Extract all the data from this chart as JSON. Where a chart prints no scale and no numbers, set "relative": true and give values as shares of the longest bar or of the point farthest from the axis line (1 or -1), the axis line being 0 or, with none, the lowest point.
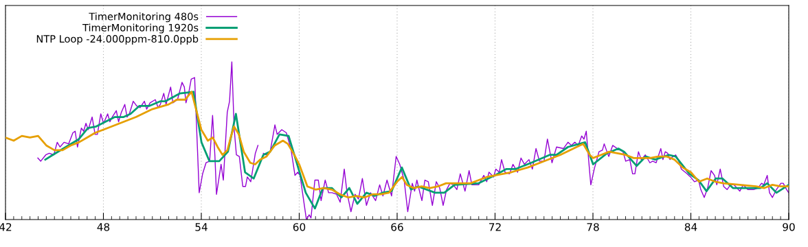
{
  "chart_data": {
    "type": "line",
    "relative": true,
    "xlim": [
      42,
      90
    ],
    "xticks": [
      42,
      48,
      54,
      60,
      66,
      72,
      78,
      84,
      90
    ],
    "tick_labels": "x",
    "grid": "x",
    "legend": "top left",
    "marker": "none",
    "line_style": "solid",
    "series": [
      {
        "name": "TimerMonitoring 480s",
        "color": "#9400d3",
        "x": [
          43.98,
          44.16,
          44.47,
          44.68,
          44.96,
          45.17,
          45.34,
          45.59,
          45.87,
          46.13,
          46.27,
          46.41,
          46.65,
          46.79,
          46.93,
          47.07,
          47.31,
          47.49,
          47.63,
          47.84,
          48.01,
          48.26,
          48.4,
          48.54,
          48.79,
          48.93,
          49.1,
          49.31,
          49.45,
          49.59,
          49.83,
          50.04,
          50.25,
          50.51,
          50.65,
          50.86,
          51.18,
          51.35,
          51.49,
          51.7,
          51.84,
          52.12,
          52.26,
          52.54,
          52.82,
          52.96,
          53.06,
          53.24,
          53.38,
          53.59,
          53.87,
          54.08,
          54.29,
          54.51,
          54.69,
          54.83,
          54.93,
          55.21,
          55.35,
          55.59,
          55.73,
          55.87,
          56.01,
          56.15,
          56.33,
          56.54,
          56.71,
          56.82,
          57.03,
          57.31,
          57.47,
          57.64,
          57.8,
          57.97,
          58.22,
          58.51,
          58.65,
          58.93,
          59.21,
          59.49,
          59.74,
          59.91,
          60.05,
          60.44,
          60.61,
          60.72,
          60.96,
          61.17,
          61.34,
          61.59,
          61.8,
          62.01,
          62.29,
          62.51,
          62.76,
          62.93,
          63.17,
          63.42,
          63.63,
          63.87,
          64.12,
          64.37,
          64.68,
          64.93,
          65.13,
          65.38,
          65.66,
          65.94,
          66.16,
          66.43,
          66.65,
          66.93,
          67.07,
          67.21,
          67.42,
          67.52,
          67.7,
          67.91,
          68.16,
          68.4,
          68.61,
          68.82,
          69.03,
          69.24,
          69.45,
          69.66,
          69.87,
          70.16,
          70.41,
          70.58,
          71.0,
          71.31,
          71.49,
          71.63,
          71.91,
          72.05,
          72.26,
          72.4,
          72.61,
          72.89,
          73.1,
          73.38,
          73.59,
          73.8,
          74.08,
          74.29,
          74.51,
          74.72,
          75.0,
          75.21,
          75.49,
          75.77,
          76.19,
          76.47,
          76.68,
          76.89,
          77.1,
          77.31,
          77.45,
          77.59,
          77.8,
          77.87,
          78.08,
          78.37,
          78.58,
          78.69,
          78.86,
          78.97,
          79.21,
          79.49,
          79.84,
          80.01,
          80.26,
          80.43,
          80.57,
          80.79,
          80.96,
          81.21,
          81.49,
          81.66,
          81.87,
          82.16,
          82.29,
          82.43,
          82.58,
          82.72,
          82.9,
          83.07,
          83.23,
          83.42,
          83.77,
          83.98,
          84.22,
          84.47,
          84.61,
          84.82,
          85.03,
          85.24,
          85.45,
          85.59,
          85.8,
          86.01,
          86.22,
          86.43,
          86.65,
          87.0,
          87.21,
          87.49,
          87.84,
          88.12,
          88.33,
          88.47,
          88.68,
          88.82,
          89.0,
          89.24,
          89.52,
          89.66,
          89.87,
          90.0
        ],
        "values": [
          0.39,
          0.37,
          0.41,
          0.42,
          0.41,
          0.49,
          0.46,
          0.49,
          0.48,
          0.55,
          0.56,
          0.46,
          0.58,
          0.56,
          0.61,
          0.57,
          0.65,
          0.54,
          0.54,
          0.67,
          0.61,
          0.67,
          0.62,
          0.65,
          0.69,
          0.62,
          0.68,
          0.73,
          0.65,
          0.67,
          0.75,
          0.72,
          0.71,
          0.75,
          0.7,
          0.74,
          0.76,
          0.71,
          0.73,
          0.8,
          0.73,
          0.84,
          0.74,
          0.76,
          0.87,
          0.84,
          0.74,
          0.81,
          0.89,
          0.9,
          0.17,
          0.29,
          0.36,
          0.37,
          0.66,
          0.41,
          0.16,
          0.35,
          0.25,
          0.68,
          0.75,
          1.0,
          0.58,
          0.41,
          0.4,
          0.21,
          0.21,
          0.27,
          0.24,
          0.42,
          0.47,
          null,
          0.42,
          0.41,
          0.43,
          0.6,
          0.54,
          0.57,
          0.55,
          0.45,
          0.28,
          0.3,
          0.28,
          0.0,
          0.03,
          0.01,
          0.25,
          0.25,
          0.12,
          0.25,
          0.17,
          0.17,
          0.16,
          0.11,
          0.32,
          0.17,
          0.05,
          0.16,
          0.13,
          0.26,
          0.09,
          0.17,
          0.12,
          0.22,
          0.15,
          0.25,
          0.15,
          0.4,
          0.35,
          0.25,
          0.05,
          0.23,
          0.18,
          0.25,
          0.16,
          0.12,
          0.25,
          0.24,
          0.09,
          0.24,
          0.2,
          0.09,
          0.19,
          0.23,
          0.22,
          0.19,
          0.29,
          0.18,
          0.31,
          0.22,
          0.22,
          0.28,
          0.24,
          0.3,
          0.27,
          0.32,
          0.3,
          0.38,
          0.3,
          0.29,
          0.35,
          0.3,
          0.39,
          0.35,
          0.38,
          0.32,
          0.45,
          0.37,
          0.37,
          0.51,
          0.36,
          0.46,
          0.45,
          0.49,
          0.47,
          0.49,
          0.47,
          0.53,
          0.51,
          0.56,
          0.3,
          0.22,
          0.32,
          0.43,
          0.44,
          0.48,
          0.43,
          0.4,
          0.47,
          0.45,
          0.43,
          0.37,
          0.38,
          0.29,
          0.29,
          0.43,
          0.38,
          0.41,
          0.36,
          0.37,
          0.36,
          0.45,
          0.38,
          0.43,
          0.42,
          0.38,
          0.4,
          0.41,
          0.38,
          0.32,
          0.29,
          0.27,
          0.24,
          0.25,
          0.19,
          0.14,
          0.2,
          0.31,
          0.28,
          0.22,
          0.32,
          0.21,
          0.19,
          0.22,
          0.22,
          0.18,
          0.22,
          0.19,
          0.19,
          0.2,
          0.23,
          0.22,
          0.28,
          0.17,
          0.14,
          0.19,
          0.23,
          0.23,
          0.19,
          0.17
        ]
      },
      {
        "name": "TimerMonitoring 1920s",
        "color": "#009e73",
        "x": [
          44.44,
          44.9,
          46.5,
          47.05,
          47.56,
          48.7,
          49.24,
          49.66,
          50.2,
          50.8,
          51.5,
          51.8,
          52.7,
          53.52,
          54.01,
          54.5,
          55.1,
          55.63,
          56.12,
          56.68,
          57.21,
          57.8,
          58.22,
          58.79,
          59.35,
          60.4,
          60.96,
          61.45,
          62.0,
          62.58,
          63.07,
          63.56,
          64.12,
          64.62,
          65.1,
          65.66,
          66.29,
          66.85,
          67.28,
          68.33,
          68.89,
          69.52,
          71.0,
          71.98,
          72.68,
          73.24,
          74.22,
          75.35,
          75.77,
          76.47,
          77.52,
          78.01,
          78.86,
          79.56,
          79.91,
          80.68,
          81.24,
          81.81,
          82.65,
          83.07,
          83.91,
          84.47,
          84.96,
          85.52,
          85.94,
          86.58,
          88.26,
          88.68,
          89.25,
          90.0
        ],
        "values": [
          0.38,
          0.41,
          0.51,
          0.58,
          0.59,
          0.65,
          0.65,
          0.67,
          0.72,
          0.72,
          0.75,
          0.75,
          0.8,
          0.81,
          0.49,
          0.37,
          0.37,
          0.43,
          0.67,
          0.3,
          0.26,
          0.41,
          0.43,
          0.54,
          0.53,
          0.17,
          0.07,
          0.2,
          0.2,
          0.14,
          0.2,
          0.1,
          0.17,
          0.15,
          0.17,
          0.18,
          0.33,
          0.19,
          0.21,
          0.17,
          0.17,
          0.22,
          0.23,
          0.28,
          0.32,
          0.32,
          0.36,
          0.41,
          0.41,
          0.46,
          0.49,
          0.35,
          0.42,
          0.45,
          0.43,
          0.34,
          0.4,
          0.38,
          0.41,
          0.4,
          0.29,
          0.25,
          0.18,
          0.26,
          0.26,
          0.2,
          0.2,
          0.23,
          0.17,
          0.22
        ]
      },
      {
        "name": "NTP Loop -24.000ppm-810.0ppb",
        "color": "#e69f00",
        "x": [
          42,
          42.5,
          43,
          43.5,
          44,
          44.5,
          45,
          45.5,
          46,
          46.5,
          47,
          47.5,
          48,
          49,
          50,
          51,
          52,
          52.5,
          53,
          53.4,
          53.8,
          54,
          54.4,
          54.7,
          55,
          55.3,
          55.6,
          55.8,
          56,
          56.3,
          56.6,
          57,
          57.3,
          57.6,
          58,
          58.5,
          59,
          59.3,
          59.7,
          60,
          60.5,
          61,
          61.5,
          62,
          62.5,
          63,
          63.5,
          64,
          64.5,
          65,
          65.5,
          66,
          66.3,
          66.6,
          67,
          67.5,
          68,
          68.5,
          69,
          69.5,
          70,
          70.5,
          71,
          71.5,
          72,
          73,
          74,
          75,
          76,
          77,
          77.4,
          77.8,
          78,
          78.5,
          79,
          79.5,
          80,
          80.5,
          81,
          81.5,
          82,
          82.5,
          83,
          83.5,
          84,
          84.5,
          85,
          85.5,
          86,
          87,
          88,
          88.5,
          89,
          89.5,
          90
        ],
        "values": [
          0.52,
          0.5,
          0.53,
          0.52,
          0.53,
          0.47,
          0.44,
          0.44,
          0.47,
          0.49,
          0.52,
          0.55,
          0.57,
          0.61,
          0.65,
          0.7,
          0.73,
          0.76,
          0.76,
          0.81,
          0.65,
          0.57,
          0.5,
          0.52,
          0.46,
          0.41,
          0.44,
          0.52,
          0.59,
          0.54,
          0.43,
          0.36,
          0.35,
          0.38,
          0.4,
          0.47,
          0.5,
          0.48,
          0.41,
          0.35,
          0.21,
          0.19,
          0.2,
          0.19,
          0.16,
          0.14,
          0.15,
          0.14,
          0.16,
          0.16,
          0.17,
          0.24,
          0.27,
          0.22,
          0.2,
          0.21,
          0.2,
          0.21,
          0.23,
          0.23,
          0.23,
          0.23,
          0.25,
          0.27,
          0.28,
          0.3,
          0.33,
          0.37,
          0.41,
          0.46,
          0.48,
          0.41,
          0.39,
          0.41,
          0.43,
          0.42,
          0.41,
          0.39,
          0.39,
          0.39,
          0.4,
          0.4,
          0.38,
          0.33,
          0.3,
          0.24,
          0.26,
          0.24,
          0.23,
          0.22,
          0.21,
          0.2,
          0.22,
          0.21,
          0.21
        ]
      }
    ]
  }
}
